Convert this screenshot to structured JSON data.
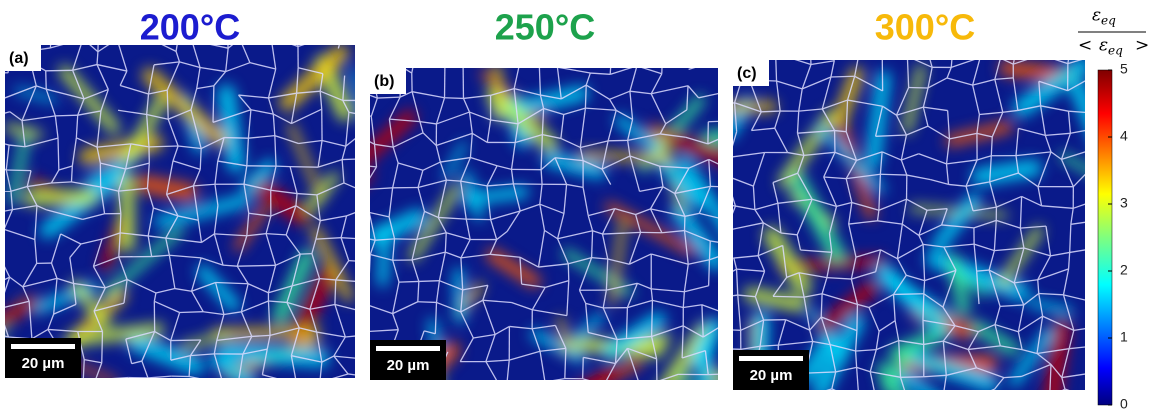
{
  "panels": [
    {
      "title": "200°C",
      "title_color": "#1c1ccf",
      "label": "(a)",
      "scale_bar": "20 µm"
    },
    {
      "title": "250°C",
      "title_color": "#1da24c",
      "title_note": null,
      "label": "(b)",
      "scale_bar": "20 µm"
    },
    {
      "title": "300°C",
      "title_color": "#f7b90a",
      "label": "(c)",
      "scale_bar": "20 µm"
    }
  ],
  "colorbar": {
    "numerator": {
      "symbol": "ε",
      "subscript": "eq"
    },
    "denominator": {
      "prefix": "< ",
      "symbol": "ε",
      "subscript": "eq",
      "suffix": ">"
    },
    "lim": [
      0,
      5
    ],
    "ticks": [
      0,
      1,
      2,
      3,
      4,
      5
    ]
  }
}
